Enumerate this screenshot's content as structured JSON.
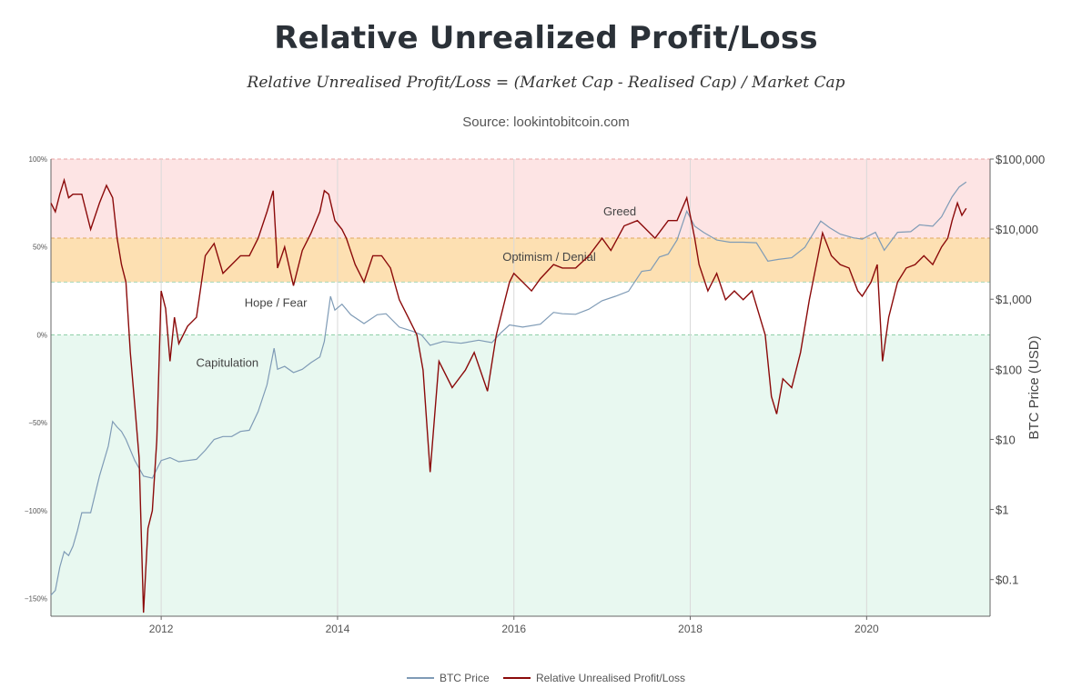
{
  "header": {
    "title": "Relative Unrealized Profit/Loss",
    "formula": "Relative Unrealised Profit/Loss = (Market Cap - Realised Cap) / Market Cap",
    "source": "Source: lookintobitcoin.com"
  },
  "legend": [
    {
      "name": "BTC Price",
      "color": "#7f9bb6"
    },
    {
      "name": "Relative Unrealised Profit/Loss",
      "color": "#8b0a0a"
    }
  ],
  "chart_data": {
    "type": "line",
    "x_ticks": [
      2012,
      2014,
      2016,
      2018,
      2020
    ],
    "x_tick_labels": [
      "2012",
      "2014",
      "2016",
      "2018",
      "2020"
    ],
    "xlim": [
      2010.75,
      2021.4
    ],
    "y_left": {
      "ticks": [
        100,
        50,
        0,
        -50,
        -100,
        -150
      ],
      "tick_labels": [
        "100%",
        "50%",
        "0%",
        "−50%",
        "−100%",
        "−150%"
      ],
      "range": [
        -160,
        100
      ]
    },
    "y_right": {
      "label": "BTC Price (USD)",
      "scale": "log",
      "ticks": [
        0.1,
        1,
        10,
        100,
        1000,
        10000,
        100000
      ],
      "tick_labels": [
        "$0.1",
        "$1",
        "$10",
        "$100",
        "$1,000",
        "$10,000",
        "$100,000"
      ],
      "range": [
        0.03,
        100000
      ]
    },
    "zones": [
      {
        "label": "Greed",
        "from": 55,
        "to": 100,
        "color": "#fde4e4",
        "line_color": "#e8a3a3"
      },
      {
        "label": "Optimism / Denial",
        "from": 30,
        "to": 55,
        "color": "#fde0b2",
        "line_color": "#e0a862"
      },
      {
        "label": "Hope / Fear",
        "from": 0,
        "to": 30,
        "color": "#ffffff",
        "line_color": "#a6d6b8"
      },
      {
        "label": "Capitulation",
        "from": -160,
        "to": 0,
        "color": "#e8f8f0",
        "line_color": "#8ecfa8"
      }
    ],
    "zone_label_positions": [
      {
        "label": "Greed",
        "x": 2017.2,
        "y": 68
      },
      {
        "label": "Optimism / Denial",
        "x": 2016.4,
        "y": 42
      },
      {
        "label": "Hope / Fear",
        "x": 2013.3,
        "y": 16
      },
      {
        "label": "Capitulation",
        "x": 2012.75,
        "y": -18
      }
    ],
    "series": [
      {
        "name": "BTC Price",
        "color": "#7f9bb6",
        "points": [
          [
            2010.75,
            0.06
          ],
          [
            2010.8,
            0.07
          ],
          [
            2010.85,
            0.15
          ],
          [
            2010.9,
            0.25
          ],
          [
            2010.95,
            0.22
          ],
          [
            2011.0,
            0.3
          ],
          [
            2011.05,
            0.5
          ],
          [
            2011.1,
            0.9
          ],
          [
            2011.2,
            0.9
          ],
          [
            2011.3,
            3
          ],
          [
            2011.4,
            8
          ],
          [
            2011.45,
            18
          ],
          [
            2011.5,
            15
          ],
          [
            2011.55,
            13
          ],
          [
            2011.6,
            10
          ],
          [
            2011.7,
            5
          ],
          [
            2011.8,
            3
          ],
          [
            2011.9,
            2.8
          ],
          [
            2012.0,
            5
          ],
          [
            2012.1,
            5.5
          ],
          [
            2012.2,
            4.8
          ],
          [
            2012.3,
            5
          ],
          [
            2012.4,
            5.2
          ],
          [
            2012.5,
            7
          ],
          [
            2012.6,
            10
          ],
          [
            2012.7,
            11
          ],
          [
            2012.8,
            11
          ],
          [
            2012.9,
            13
          ],
          [
            2013.0,
            13.5
          ],
          [
            2013.1,
            25
          ],
          [
            2013.2,
            60
          ],
          [
            2013.28,
            200
          ],
          [
            2013.32,
            100
          ],
          [
            2013.4,
            110
          ],
          [
            2013.5,
            90
          ],
          [
            2013.6,
            100
          ],
          [
            2013.7,
            125
          ],
          [
            2013.8,
            150
          ],
          [
            2013.85,
            250
          ],
          [
            2013.92,
            1100
          ],
          [
            2013.97,
            700
          ],
          [
            2014.05,
            850
          ],
          [
            2014.15,
            600
          ],
          [
            2014.3,
            450
          ],
          [
            2014.45,
            600
          ],
          [
            2014.55,
            620
          ],
          [
            2014.7,
            400
          ],
          [
            2014.85,
            350
          ],
          [
            2014.95,
            310
          ],
          [
            2015.05,
            220
          ],
          [
            2015.2,
            250
          ],
          [
            2015.4,
            235
          ],
          [
            2015.6,
            260
          ],
          [
            2015.75,
            240
          ],
          [
            2015.85,
            330
          ],
          [
            2015.95,
            430
          ],
          [
            2016.1,
            400
          ],
          [
            2016.3,
            440
          ],
          [
            2016.45,
            650
          ],
          [
            2016.55,
            620
          ],
          [
            2016.7,
            610
          ],
          [
            2016.85,
            720
          ],
          [
            2017.0,
            950
          ],
          [
            2017.15,
            1100
          ],
          [
            2017.3,
            1300
          ],
          [
            2017.45,
            2500
          ],
          [
            2017.55,
            2600
          ],
          [
            2017.65,
            4000
          ],
          [
            2017.75,
            4400
          ],
          [
            2017.85,
            7000
          ],
          [
            2017.96,
            18000
          ],
          [
            2018.05,
            11000
          ],
          [
            2018.15,
            9000
          ],
          [
            2018.3,
            7000
          ],
          [
            2018.45,
            6500
          ],
          [
            2018.6,
            6500
          ],
          [
            2018.75,
            6400
          ],
          [
            2018.88,
            3500
          ],
          [
            2019.0,
            3700
          ],
          [
            2019.15,
            3900
          ],
          [
            2019.3,
            5500
          ],
          [
            2019.48,
            13000
          ],
          [
            2019.58,
            10500
          ],
          [
            2019.7,
            8500
          ],
          [
            2019.85,
            7500
          ],
          [
            2019.95,
            7200
          ],
          [
            2020.1,
            9000
          ],
          [
            2020.2,
            5000
          ],
          [
            2020.35,
            9000
          ],
          [
            2020.5,
            9200
          ],
          [
            2020.6,
            11500
          ],
          [
            2020.75,
            11000
          ],
          [
            2020.85,
            15000
          ],
          [
            2020.97,
            29000
          ],
          [
            2021.05,
            40000
          ],
          [
            2021.13,
            47000
          ]
        ]
      },
      {
        "name": "Relative Unrealised Profit/Loss",
        "color": "#8b0a0a",
        "points": [
          [
            2010.75,
            75
          ],
          [
            2010.8,
            70
          ],
          [
            2010.85,
            80
          ],
          [
            2010.9,
            88
          ],
          [
            2010.95,
            78
          ],
          [
            2011.0,
            80
          ],
          [
            2011.1,
            80
          ],
          [
            2011.2,
            60
          ],
          [
            2011.3,
            75
          ],
          [
            2011.38,
            85
          ],
          [
            2011.45,
            78
          ],
          [
            2011.5,
            55
          ],
          [
            2011.55,
            40
          ],
          [
            2011.6,
            30
          ],
          [
            2011.65,
            -10
          ],
          [
            2011.7,
            -40
          ],
          [
            2011.75,
            -70
          ],
          [
            2011.8,
            -158
          ],
          [
            2011.85,
            -110
          ],
          [
            2011.9,
            -100
          ],
          [
            2011.95,
            -60
          ],
          [
            2012.0,
            25
          ],
          [
            2012.05,
            15
          ],
          [
            2012.1,
            -15
          ],
          [
            2012.15,
            10
          ],
          [
            2012.2,
            -5
          ],
          [
            2012.3,
            5
          ],
          [
            2012.4,
            10
          ],
          [
            2012.5,
            45
          ],
          [
            2012.6,
            52
          ],
          [
            2012.7,
            35
          ],
          [
            2012.8,
            40
          ],
          [
            2012.9,
            45
          ],
          [
            2013.0,
            45
          ],
          [
            2013.1,
            55
          ],
          [
            2013.2,
            70
          ],
          [
            2013.27,
            82
          ],
          [
            2013.32,
            38
          ],
          [
            2013.4,
            50
          ],
          [
            2013.5,
            28
          ],
          [
            2013.6,
            48
          ],
          [
            2013.7,
            58
          ],
          [
            2013.8,
            70
          ],
          [
            2013.85,
            82
          ],
          [
            2013.9,
            80
          ],
          [
            2013.97,
            65
          ],
          [
            2014.05,
            60
          ],
          [
            2014.1,
            55
          ],
          [
            2014.2,
            40
          ],
          [
            2014.3,
            30
          ],
          [
            2014.4,
            45
          ],
          [
            2014.5,
            45
          ],
          [
            2014.6,
            38
          ],
          [
            2014.7,
            20
          ],
          [
            2014.8,
            10
          ],
          [
            2014.9,
            0
          ],
          [
            2014.97,
            -20
          ],
          [
            2015.05,
            -78
          ],
          [
            2015.15,
            -15
          ],
          [
            2015.3,
            -30
          ],
          [
            2015.45,
            -20
          ],
          [
            2015.55,
            -10
          ],
          [
            2015.7,
            -32
          ],
          [
            2015.8,
            0
          ],
          [
            2015.9,
            20
          ],
          [
            2015.95,
            30
          ],
          [
            2016.0,
            35
          ],
          [
            2016.1,
            30
          ],
          [
            2016.2,
            25
          ],
          [
            2016.3,
            32
          ],
          [
            2016.45,
            40
          ],
          [
            2016.55,
            38
          ],
          [
            2016.7,
            38
          ],
          [
            2016.85,
            45
          ],
          [
            2017.0,
            55
          ],
          [
            2017.1,
            48
          ],
          [
            2017.25,
            62
          ],
          [
            2017.4,
            65
          ],
          [
            2017.5,
            60
          ],
          [
            2017.6,
            55
          ],
          [
            2017.75,
            65
          ],
          [
            2017.85,
            65
          ],
          [
            2017.96,
            78
          ],
          [
            2018.05,
            55
          ],
          [
            2018.1,
            40
          ],
          [
            2018.2,
            25
          ],
          [
            2018.3,
            35
          ],
          [
            2018.4,
            20
          ],
          [
            2018.5,
            25
          ],
          [
            2018.6,
            20
          ],
          [
            2018.7,
            25
          ],
          [
            2018.85,
            0
          ],
          [
            2018.92,
            -35
          ],
          [
            2018.98,
            -45
          ],
          [
            2019.05,
            -25
          ],
          [
            2019.15,
            -30
          ],
          [
            2019.25,
            -10
          ],
          [
            2019.35,
            20
          ],
          [
            2019.45,
            45
          ],
          [
            2019.5,
            58
          ],
          [
            2019.6,
            45
          ],
          [
            2019.7,
            40
          ],
          [
            2019.8,
            38
          ],
          [
            2019.9,
            25
          ],
          [
            2019.95,
            22
          ],
          [
            2020.05,
            30
          ],
          [
            2020.12,
            40
          ],
          [
            2020.18,
            -15
          ],
          [
            2020.25,
            10
          ],
          [
            2020.35,
            30
          ],
          [
            2020.45,
            38
          ],
          [
            2020.55,
            40
          ],
          [
            2020.65,
            45
          ],
          [
            2020.75,
            40
          ],
          [
            2020.85,
            50
          ],
          [
            2020.92,
            55
          ],
          [
            2020.97,
            65
          ],
          [
            2021.03,
            75
          ],
          [
            2021.08,
            68
          ],
          [
            2021.13,
            72
          ]
        ]
      }
    ]
  }
}
